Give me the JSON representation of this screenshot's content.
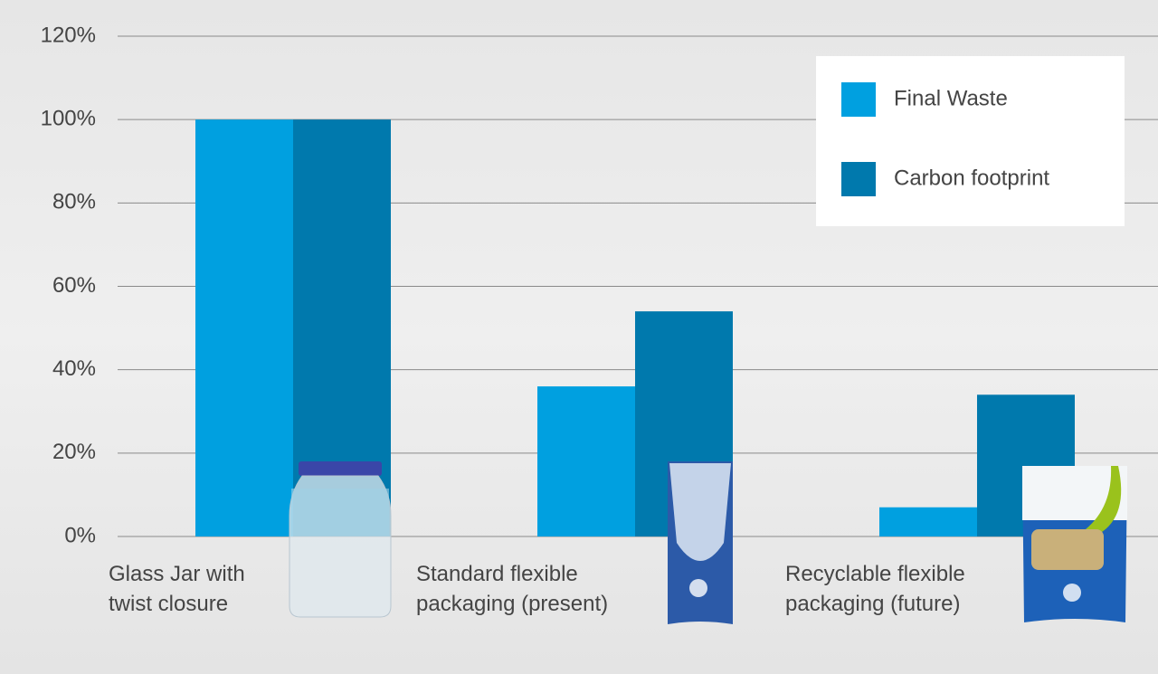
{
  "chart_data": {
    "type": "bar",
    "categories": [
      "Glass Jar with\ntwist closure",
      "Standard flexible\npackaging (present)",
      "Recyclable flexible\npackaging (future)"
    ],
    "series": [
      {
        "name": "Final Waste",
        "color": "#00a0e0",
        "values": [
          100,
          36,
          7
        ]
      },
      {
        "name": "Carbon footprint",
        "color": "#0079ad",
        "values": [
          100,
          54,
          34
        ]
      }
    ],
    "ylim": [
      0,
      120
    ],
    "yticks": [
      {
        "value": 0,
        "label": "0%"
      },
      {
        "value": 20,
        "label": "20%"
      },
      {
        "value": 40,
        "label": "40%"
      },
      {
        "value": 60,
        "label": "60%"
      },
      {
        "value": 80,
        "label": "80%"
      },
      {
        "value": 100,
        "label": "100%"
      },
      {
        "value": 120,
        "label": "120%"
      }
    ],
    "grid": true,
    "legend": "top-right"
  }
}
